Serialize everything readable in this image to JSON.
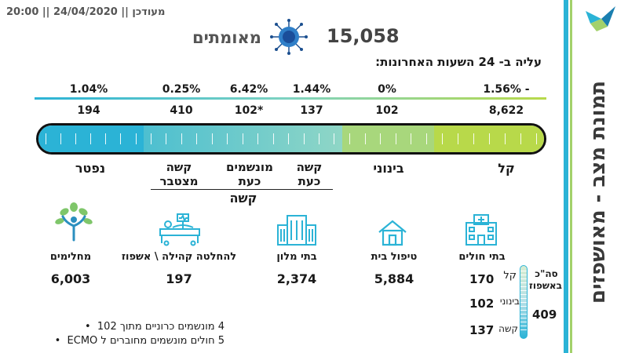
{
  "header": {
    "updated_label": "מעודכן || 24/04/2020 || 20:00",
    "confirmed_count": "15,058",
    "confirmed_label": "מאומתים",
    "increase_label": "עליה ב- 24 השעות האחרונות:"
  },
  "side_title": "תמונת מצב - מאושפזים",
  "bar": {
    "segments": [
      {
        "key": "deceased",
        "percent": "1.04%",
        "count": "194",
        "label": "נפטר"
      },
      {
        "key": "severe_cumulative",
        "percent": "0.25%",
        "count": "410",
        "label_line1": "קשה",
        "label_line2": "מצטבר"
      },
      {
        "key": "ventilated",
        "percent": "6.42%",
        "count": "102*",
        "label_line1": "מונשמים",
        "label_line2": "כעת"
      },
      {
        "key": "severe_now",
        "percent": "1.44%",
        "count": "137",
        "label_line1": "קשה",
        "label_line2": "כעת"
      },
      {
        "key": "moderate",
        "percent": "0%",
        "count": "102",
        "label": "בינוני"
      },
      {
        "key": "mild",
        "percent": "- 1.56%",
        "count": "8,622",
        "label": "קל"
      }
    ],
    "group_label": "קשה"
  },
  "categories": [
    {
      "key": "hospitals",
      "label": "בתי חולים",
      "value": "",
      "icon": "hospital-icon"
    },
    {
      "key": "home",
      "label": "טיפול בית",
      "value": "5,884",
      "icon": "home-icon"
    },
    {
      "key": "hotels",
      "label": "בתי מלון",
      "value": "2,374",
      "icon": "hotel-icon"
    },
    {
      "key": "community",
      "label": "להחלטה קהילה \\ אשפוז",
      "value": "197",
      "icon": "bed-icon"
    },
    {
      "key": "recovered",
      "label": "מחלימים",
      "value": "6,003",
      "icon": "recovered-tree-icon"
    }
  ],
  "hospital_breakdown": {
    "mild_label": "קל",
    "mild_value": "170",
    "moderate_label": "בינוני",
    "moderate_value": "102",
    "severe_label": "קשה",
    "severe_value": "137",
    "total_label_line1": "סה\"כ",
    "total_label_line2": "באשפוז",
    "total_value": "409"
  },
  "notes": [
    "4 מונשמים כרוניים מתוך 102",
    "5 חולים מונשמים מחוברים ל ECMO"
  ],
  "colors": {
    "teal": "#2bb3d6",
    "mint": "#7fd3c0",
    "green": "#a3d16b",
    "lime": "#b8d94a",
    "accent_line": "#44b6df"
  }
}
